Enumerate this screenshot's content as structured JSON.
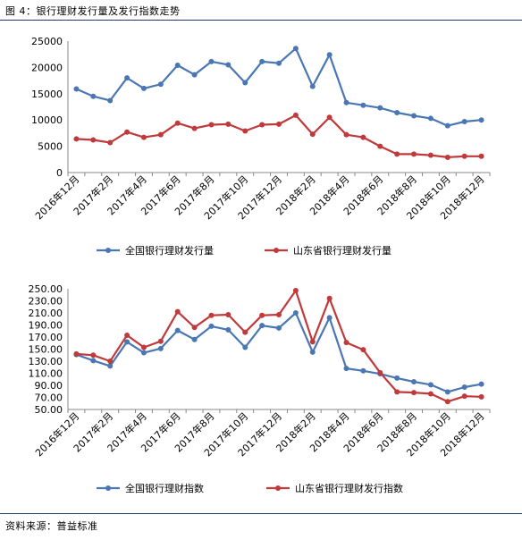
{
  "figure_title": "图 4：银行理财发行量及发行指数走势",
  "source": "资料来源：普益标准",
  "colors": {
    "blue": "#4a77b4",
    "red": "#c0393b",
    "axis": "#888888"
  },
  "chart_data": [
    {
      "type": "line",
      "categories": [
        "2016年12月",
        "2017年1月",
        "2017年2月",
        "2017年3月",
        "2017年4月",
        "2017年5月",
        "2017年6月",
        "2017年7月",
        "2017年8月",
        "2017年9月",
        "2017年10月",
        "2017年11月",
        "2017年12月",
        "2018年1月",
        "2018年2月",
        "2018年3月",
        "2018年4月",
        "2018年5月",
        "2018年6月",
        "2018年7月",
        "2018年8月",
        "2018年9月",
        "2018年10月",
        "2018年11月",
        "2018年12月"
      ],
      "x_tick_labels": [
        "2016年12月",
        "2017年2月",
        "2017年4月",
        "2017年6月",
        "2017年8月",
        "2017年10月",
        "2017年12月",
        "2018年2月",
        "2018年4月",
        "2018年6月",
        "2018年8月",
        "2018年10月",
        "2018年12月"
      ],
      "y_tick_labels": [
        "0",
        "5000",
        "10000",
        "15000",
        "20000",
        "25000"
      ],
      "ylim": [
        0,
        25000
      ],
      "series": [
        {
          "name": "全国银行理财发行量",
          "color": "#4a77b4",
          "values": [
            15900,
            14500,
            13700,
            18000,
            16000,
            16800,
            20400,
            18600,
            21100,
            20500,
            17100,
            21100,
            20800,
            23600,
            16400,
            22400,
            13300,
            12800,
            12300,
            11400,
            10800,
            10300,
            8900,
            9700,
            10000
          ]
        },
        {
          "name": "山东省银行理财发行量",
          "color": "#c0393b",
          "values": [
            6400,
            6200,
            5700,
            7700,
            6700,
            7200,
            9400,
            8400,
            9100,
            9200,
            7900,
            9100,
            9200,
            10900,
            7300,
            10500,
            7200,
            6700,
            5000,
            3500,
            3500,
            3300,
            2900,
            3100,
            3100
          ]
        }
      ],
      "legend_position": "bottom",
      "grid": false
    },
    {
      "type": "line",
      "categories": [
        "2016年12月",
        "2017年1月",
        "2017年2月",
        "2017年3月",
        "2017年4月",
        "2017年5月",
        "2017年6月",
        "2017年7月",
        "2017年8月",
        "2017年9月",
        "2017年10月",
        "2017年11月",
        "2017年12月",
        "2018年1月",
        "2018年2月",
        "2018年3月",
        "2018年4月",
        "2018年5月",
        "2018年6月",
        "2018年7月",
        "2018年8月",
        "2018年9月",
        "2018年10月",
        "2018年11月",
        "2018年12月"
      ],
      "x_tick_labels": [
        "2016年12月",
        "2017年2月",
        "2017年4月",
        "2017年6月",
        "2017年8月",
        "2017年10月",
        "2017年12月",
        "2018年2月",
        "2018年4月",
        "2018年6月",
        "2018年8月",
        "2018年10月",
        "2018年12月"
      ],
      "y_tick_labels": [
        "50.00",
        "70.00",
        "90.00",
        "110.00",
        "130.00",
        "150.00",
        "170.00",
        "190.00",
        "210.00",
        "230.00",
        "250.00"
      ],
      "ylim": [
        50,
        250
      ],
      "series": [
        {
          "name": "全国银行理财指数",
          "color": "#4a77b4",
          "values": [
            141,
            131,
            122,
            162,
            144,
            151,
            181,
            166,
            188,
            182,
            153,
            189,
            185,
            210,
            145,
            202,
            118,
            114,
            109,
            102,
            96,
            91,
            79,
            87,
            92
          ]
        },
        {
          "name": "山东省银行理财发行指数",
          "color": "#c0393b",
          "values": [
            142,
            140,
            130,
            173,
            153,
            163,
            212,
            186,
            206,
            207,
            178,
            206,
            207,
            247,
            162,
            234,
            161,
            149,
            111,
            79,
            78,
            76,
            63,
            72,
            71
          ]
        }
      ],
      "legend_position": "bottom",
      "grid": false
    }
  ]
}
